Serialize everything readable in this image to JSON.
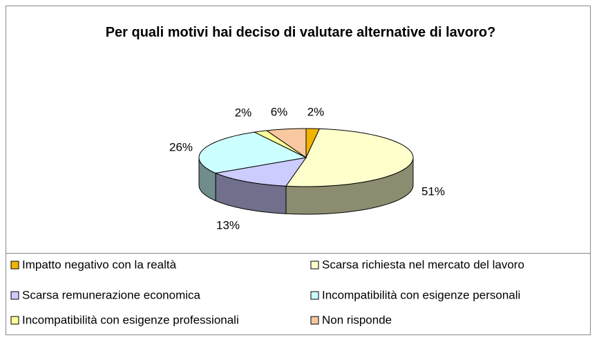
{
  "chart_data": {
    "type": "pie3d",
    "title": "Per quali motivi hai deciso di valutare alternative di lavoro?",
    "categories": [
      "Impatto negativo con la realtà",
      "Scarsa richiesta nel mercato del lavoro",
      "Scarsa remunerazione economica",
      "Incompatibilità con esigenze personali",
      "Incompatibilità con esigenze professionali",
      "Non risponde"
    ],
    "values": [
      2,
      51,
      13,
      26,
      2,
      6
    ],
    "value_labels": [
      "2%",
      "51%",
      "13%",
      "26%",
      "2%",
      "6%"
    ],
    "colors": [
      "#f0b400",
      "#ffffcc",
      "#ccccff",
      "#ccffff",
      "#ffff99",
      "#f8c8a0"
    ],
    "legend": "bottom"
  }
}
